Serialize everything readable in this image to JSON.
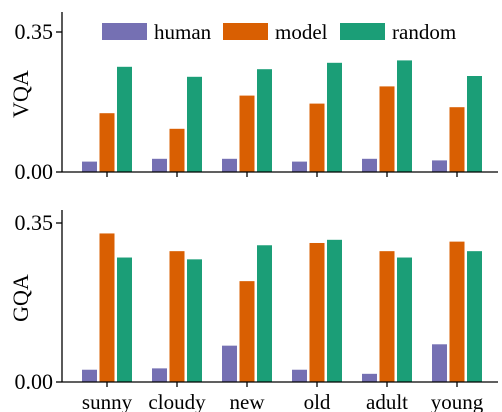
{
  "chart_data": [
    {
      "type": "bar",
      "ylabel": "VQA",
      "ylim": [
        0,
        0.35
      ],
      "yticks": [
        "0.00",
        "0.35"
      ],
      "categories": [
        "sunny",
        "cloudy",
        "new",
        "old",
        "adult",
        "young"
      ],
      "series": [
        {
          "name": "human",
          "color": "#7570b3",
          "values": [
            0.026,
            0.033,
            0.033,
            0.026,
            0.033,
            0.029
          ]
        },
        {
          "name": "model",
          "color": "#d95f02",
          "values": [
            0.147,
            0.108,
            0.191,
            0.171,
            0.214,
            0.162
          ]
        },
        {
          "name": "random",
          "color": "#1b9e77",
          "values": [
            0.263,
            0.238,
            0.257,
            0.273,
            0.279,
            0.24
          ]
        }
      ],
      "legend": "top",
      "grid": false
    },
    {
      "type": "bar",
      "ylabel": "GQA",
      "ylim": [
        0,
        0.35
      ],
      "yticks": [
        "0.00",
        "0.35"
      ],
      "categories": [
        "sunny",
        "cloudy",
        "new",
        "old",
        "adult",
        "young"
      ],
      "series": [
        {
          "name": "human",
          "color": "#7570b3",
          "values": [
            0.027,
            0.03,
            0.08,
            0.027,
            0.018,
            0.083
          ]
        },
        {
          "name": "model",
          "color": "#d95f02",
          "values": [
            0.327,
            0.288,
            0.222,
            0.306,
            0.288,
            0.309
          ]
        },
        {
          "name": "random",
          "color": "#1b9e77",
          "values": [
            0.274,
            0.27,
            0.301,
            0.313,
            0.274,
            0.288
          ]
        }
      ],
      "grid": false
    }
  ]
}
